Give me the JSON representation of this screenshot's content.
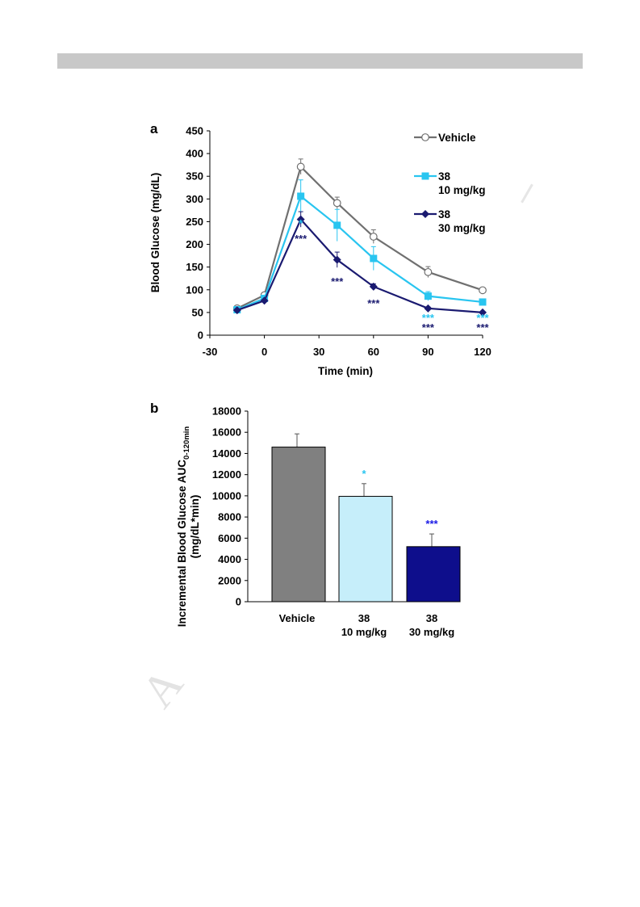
{
  "colors": {
    "vehicle": "#707070",
    "dose10": "#29c5f0",
    "dose30": "#1a1a70",
    "bar_vehicle": "#808080",
    "bar_dose10": "#c6eefa",
    "bar_dose30": "#0e0e8c",
    "star_dose10_b": "#29c5f0",
    "star_dose30_b": "#1a1ae6"
  },
  "chart_data": [
    {
      "panel": "a",
      "type": "line",
      "xlabel": "Time (min)",
      "ylabel": "Blood Glucose (mg/dL)",
      "xlim": [
        -30,
        120
      ],
      "ylim": [
        0,
        450
      ],
      "xticks": [
        -30,
        0,
        30,
        60,
        90,
        120
      ],
      "yticks": [
        0,
        50,
        100,
        150,
        200,
        250,
        300,
        350,
        400,
        450
      ],
      "x": [
        -15,
        0,
        20,
        40,
        60,
        90,
        120
      ],
      "series": [
        {
          "key": "vehicle",
          "name": "Vehicle",
          "marker": "open-circle",
          "values": [
            59,
            88,
            371,
            291,
            217,
            139,
            99
          ],
          "errors": [
            4,
            5,
            17,
            13,
            15,
            12,
            4
          ]
        },
        {
          "key": "dose10",
          "name": "38\n10 mg/kg",
          "marker": "square",
          "values": [
            56,
            81,
            306,
            242,
            169,
            86,
            73
          ],
          "errors": [
            3,
            4,
            36,
            35,
            26,
            10,
            5
          ]
        },
        {
          "key": "dose30",
          "name": "38\n30 mg/kg",
          "marker": "diamond",
          "values": [
            55,
            76,
            255,
            166,
            107,
            59,
            50
          ],
          "errors": [
            3,
            3,
            17,
            17,
            6,
            3,
            2
          ]
        }
      ],
      "significance": [
        {
          "series": "dose10",
          "x": 20,
          "label": "*"
        },
        {
          "series": "dose30",
          "x": 20,
          "label": "***"
        },
        {
          "series": "dose30",
          "x": 40,
          "label": "***"
        },
        {
          "series": "dose30",
          "x": 60,
          "label": "***"
        },
        {
          "series": "dose10",
          "x": 90,
          "label": "***"
        },
        {
          "series": "dose30",
          "x": 90,
          "label": "***"
        },
        {
          "series": "dose10",
          "x": 120,
          "label": "***"
        },
        {
          "series": "dose30",
          "x": 120,
          "label": "***"
        }
      ]
    },
    {
      "panel": "b",
      "type": "bar",
      "ylabel_main": "Incremental Blood Glucose AUC",
      "ylabel_sub": "0-120min",
      "ylabel_line2": "(mg/dL*min)",
      "ylim": [
        0,
        18000
      ],
      "yticks": [
        0,
        2000,
        4000,
        6000,
        8000,
        10000,
        12000,
        14000,
        16000,
        18000
      ],
      "categories": [
        "Vehicle",
        "38\n10 mg/kg",
        "38\n30 mg/kg"
      ],
      "values": [
        14600,
        9950,
        5200
      ],
      "errors": [
        1250,
        1200,
        1200
      ],
      "significance": [
        "",
        "*",
        "***"
      ]
    }
  ]
}
